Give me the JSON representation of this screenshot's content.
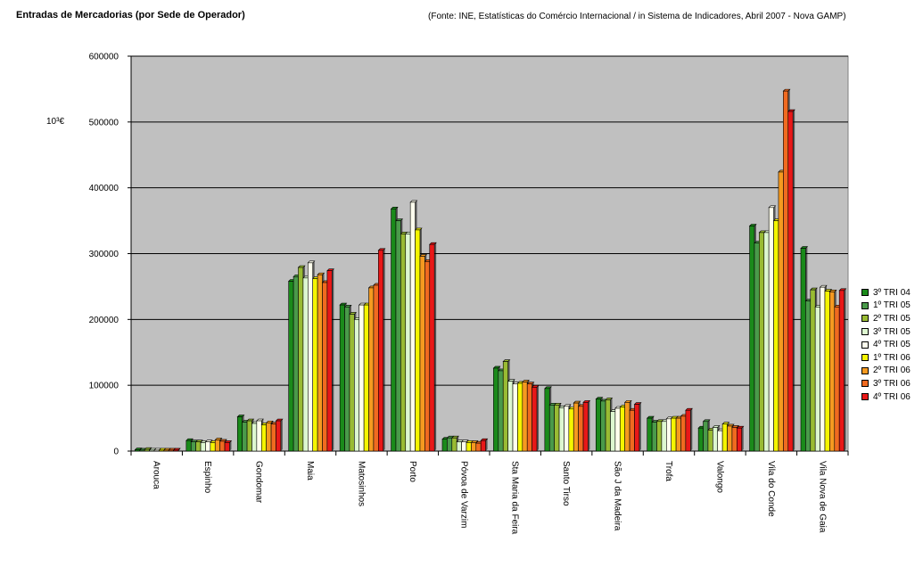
{
  "title": "Entradas de Mercadorias (por Sede de Operador)",
  "source": "(Fonte: INE, Estatísticas do Comércio Internacional  / in Sistema de Indicadores, Abril 2007 - Nova GAMP)",
  "unit_label": "10³€",
  "chart_data": {
    "type": "bar",
    "title": "Entradas de Mercadorias (por Sede de Operador)",
    "ylabel": "10³€",
    "xlabel": "",
    "ylim": [
      0,
      600000
    ],
    "yticks": [
      0,
      100000,
      200000,
      300000,
      400000,
      500000,
      600000
    ],
    "ytick_labels": [
      "0",
      "100000",
      "200000",
      "300000",
      "400000",
      "500000",
      "600000"
    ],
    "grid": true,
    "legend_position": "right",
    "categories": [
      "Arouca",
      "Espinho",
      "Gondomar",
      "Maia",
      "Matosinhos",
      "Porto",
      "Póvoa de Varzim",
      "Sta Maria da Feira",
      "Santo Tirso",
      "São J da Madeira",
      "Trofa",
      "Valongo",
      "Vila do Conde",
      "Vila Nova de Gaia"
    ],
    "series": [
      {
        "name": "3º TRI 04",
        "color": "#1a8a1a",
        "values": [
          2000,
          16000,
          52000,
          258000,
          222000,
          368000,
          18000,
          126000,
          95000,
          79000,
          50000,
          35000,
          342000,
          308000
        ]
      },
      {
        "name": "1º TRI 05",
        "color": "#4a9a4a",
        "values": [
          1500,
          14000,
          44000,
          265000,
          219000,
          350000,
          20000,
          122000,
          70000,
          76000,
          44000,
          45000,
          316000,
          228000
        ]
      },
      {
        "name": "2º TRI 05",
        "color": "#99bb33",
        "values": [
          2500,
          14000,
          46000,
          279000,
          208000,
          330000,
          20000,
          136000,
          70000,
          78000,
          45000,
          32000,
          332000,
          245000
        ]
      },
      {
        "name": "3º TRI 05",
        "color": "#ddf7d0",
        "values": [
          1500,
          13000,
          42000,
          263000,
          200000,
          330000,
          14000,
          106000,
          66000,
          60000,
          45000,
          36000,
          332000,
          219000
        ]
      },
      {
        "name": "4º TRI 05",
        "color": "#ffffee",
        "values": [
          1500,
          14000,
          46000,
          286000,
          222000,
          378000,
          14000,
          102000,
          68000,
          65000,
          49000,
          31000,
          370000,
          249000
        ]
      },
      {
        "name": "1º TRI 06",
        "color": "#f5f500",
        "values": [
          1500,
          13000,
          40000,
          262000,
          222000,
          336000,
          13000,
          103000,
          64000,
          67000,
          50000,
          41000,
          350000,
          243000
        ]
      },
      {
        "name": "2º TRI 06",
        "color": "#f59a20",
        "values": [
          1500,
          17000,
          43000,
          268000,
          248000,
          296000,
          13000,
          105000,
          73000,
          74000,
          50000,
          38000,
          424000,
          242000
        ]
      },
      {
        "name": "3º TRI 06",
        "color": "#f06a20",
        "values": [
          1500,
          15000,
          41000,
          256000,
          252000,
          288000,
          12000,
          102000,
          68000,
          62000,
          53000,
          36000,
          547000,
          219000
        ]
      },
      {
        "name": "4º TRI 06",
        "color": "#e81818",
        "values": [
          1500,
          13000,
          46000,
          274000,
          305000,
          314000,
          16000,
          97000,
          74000,
          71000,
          62000,
          35000,
          516000,
          244000
        ]
      }
    ]
  }
}
